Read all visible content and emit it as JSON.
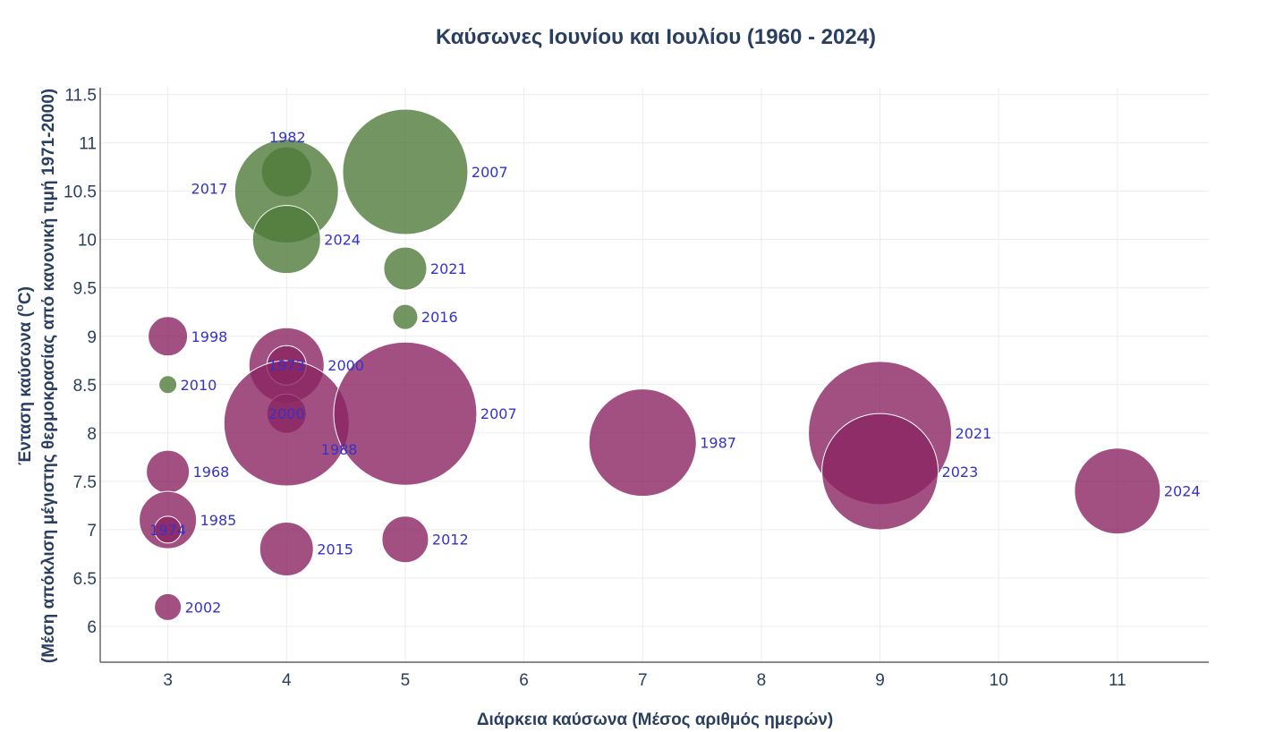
{
  "chart_data": {
    "type": "scatter",
    "title": "Καύσωνες Ιουνίου και Ιουλίου (1960 - 2024)",
    "xlabel": "Διάρκεια καύσωνα (Μέσος αριθμός ημερών)",
    "ylabel_line1": "Ένταση καύσωνα (",
    "ylabel_degree": "o",
    "ylabel_unit_end": "C)",
    "ylabel_line2": "(Μέση απόκλιση μέγιστης θερμοκρασίας από κανονική τιμή 1971-2000)",
    "xlim": [
      2.43,
      11.77
    ],
    "ylim": [
      5.63,
      11.57
    ],
    "xticks": [
      "3",
      "4",
      "5",
      "6",
      "7",
      "8",
      "9",
      "10",
      "11"
    ],
    "yticks": [
      "6",
      "6.5",
      "7",
      "7.5",
      "8",
      "8.5",
      "9",
      "9.5",
      "10",
      "10.5",
      "11",
      "11.5"
    ],
    "grid": true,
    "legend": "none",
    "colors": {
      "series_a": "#4f7a3a",
      "series_b": "#8a2461",
      "label": "#3333cc",
      "axis_text": "#2a3f5f"
    },
    "series": [
      {
        "color_key": "series_a",
        "points": [
          {
            "label": "1982",
            "x": 4,
            "y": 10.7,
            "size": 2.8,
            "label_pos": "top"
          },
          {
            "label": "2007",
            "x": 5,
            "y": 10.7,
            "size": 7.0,
            "label_pos": "right"
          },
          {
            "label": "2017",
            "x": 4,
            "y": 10.5,
            "size": 5.8,
            "label_pos": "left"
          },
          {
            "label": "2024",
            "x": 4,
            "y": 10.0,
            "size": 3.8,
            "label_pos": "right"
          },
          {
            "label": "2021",
            "x": 5,
            "y": 9.7,
            "size": 2.4,
            "label_pos": "right"
          },
          {
            "label": "2016",
            "x": 5,
            "y": 9.2,
            "size": 1.4,
            "label_pos": "right"
          },
          {
            "label": "2010",
            "x": 3,
            "y": 8.5,
            "size": 1.0,
            "label_pos": "right"
          }
        ]
      },
      {
        "color_key": "series_b",
        "points": [
          {
            "label": "1998",
            "x": 3,
            "y": 9.0,
            "size": 2.2,
            "label_pos": "right"
          },
          {
            "label": "2000",
            "x": 4,
            "y": 8.7,
            "size": 4.2,
            "label_pos": "right"
          },
          {
            "label": "1973",
            "x": 4,
            "y": 8.7,
            "size": 2.2,
            "label_pos": "center"
          },
          {
            "label": "2000",
            "x": 4,
            "y": 8.2,
            "size": 2.2,
            "label_pos": "center"
          },
          {
            "label": "1988",
            "x": 4,
            "y": 8.1,
            "size": 7.0,
            "label_pos": "bottom-right"
          },
          {
            "label": "2007",
            "x": 5,
            "y": 8.2,
            "size": 8.0,
            "label_pos": "right"
          },
          {
            "label": "1987",
            "x": 7,
            "y": 7.9,
            "size": 6.0,
            "label_pos": "right"
          },
          {
            "label": "2021",
            "x": 9,
            "y": 8.0,
            "size": 8.0,
            "label_pos": "right"
          },
          {
            "label": "2023",
            "x": 9,
            "y": 7.6,
            "size": 6.5,
            "label_pos": "right"
          },
          {
            "label": "2024",
            "x": 11,
            "y": 7.4,
            "size": 4.8,
            "label_pos": "right"
          },
          {
            "label": "1968",
            "x": 3,
            "y": 7.6,
            "size": 2.4,
            "label_pos": "right"
          },
          {
            "label": "1985",
            "x": 3,
            "y": 7.1,
            "size": 3.2,
            "label_pos": "right"
          },
          {
            "label": "1974",
            "x": 3,
            "y": 7.0,
            "size": 1.5,
            "label_pos": "center"
          },
          {
            "label": "2015",
            "x": 4,
            "y": 6.8,
            "size": 3.0,
            "label_pos": "right"
          },
          {
            "label": "2012",
            "x": 5,
            "y": 6.9,
            "size": 2.6,
            "label_pos": "right"
          },
          {
            "label": "2002",
            "x": 3,
            "y": 6.2,
            "size": 1.5,
            "label_pos": "right"
          }
        ]
      }
    ]
  }
}
